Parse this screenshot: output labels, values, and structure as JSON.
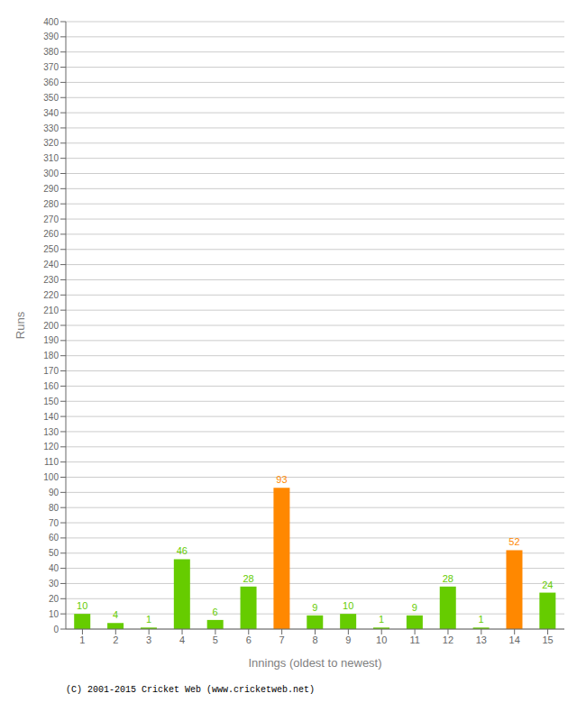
{
  "chart_data": {
    "type": "bar",
    "categories": [
      "1",
      "2",
      "3",
      "4",
      "5",
      "6",
      "7",
      "8",
      "9",
      "10",
      "11",
      "12",
      "13",
      "14",
      "15"
    ],
    "values": [
      10,
      4,
      1,
      46,
      6,
      28,
      93,
      9,
      10,
      1,
      9,
      28,
      1,
      52,
      24
    ],
    "colors": [
      "#66cc00",
      "#66cc00",
      "#66cc00",
      "#66cc00",
      "#66cc00",
      "#66cc00",
      "#ff8800",
      "#66cc00",
      "#66cc00",
      "#66cc00",
      "#66cc00",
      "#66cc00",
      "#66cc00",
      "#ff8800",
      "#66cc00"
    ],
    "xlabel": "Innings (oldest to newest)",
    "ylabel": "Runs",
    "ylim": [
      0,
      400
    ],
    "yticks": [
      0,
      10,
      20,
      30,
      40,
      50,
      60,
      70,
      80,
      90,
      100,
      110,
      120,
      130,
      140,
      150,
      160,
      170,
      180,
      190,
      200,
      210,
      220,
      230,
      240,
      250,
      260,
      270,
      280,
      290,
      300,
      310,
      320,
      330,
      340,
      350,
      360,
      370,
      380,
      390,
      400
    ],
    "grid": true,
    "data_labels": true,
    "annotations": [
      "(C) 2001-2015 Cricket Web (www.cricketweb.net)"
    ]
  }
}
